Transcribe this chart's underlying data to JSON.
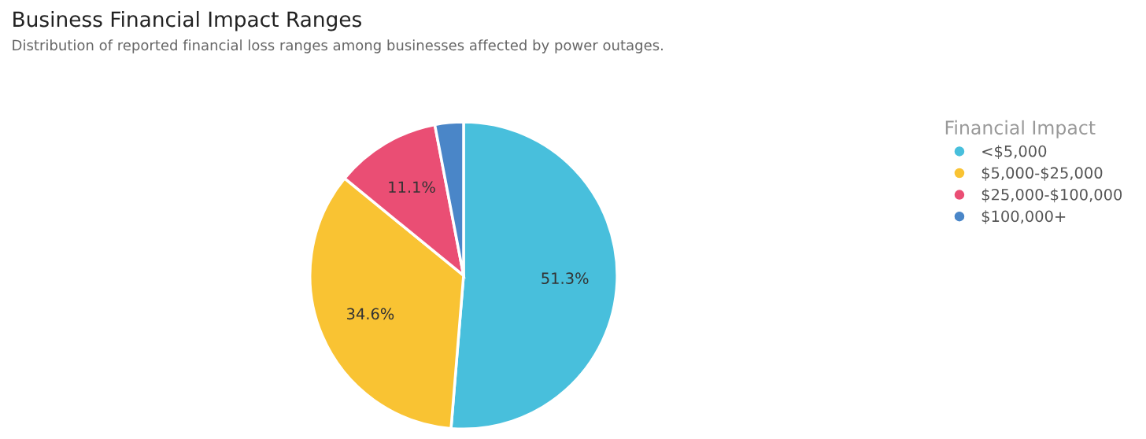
{
  "chart_data": {
    "type": "pie",
    "title": "Business Financial Impact Ranges",
    "subtitle": "Distribution of reported financial loss ranges among businesses affected by power outages.",
    "categories": [
      "<$5,000",
      "$5,000-$25,000",
      "$25,000-$100,000",
      "$100,000+"
    ],
    "values": [
      51.3,
      34.6,
      11.1,
      3.0
    ],
    "colors": [
      "#48bfdc",
      "#f9c333",
      "#ea4e74",
      "#4a86c8"
    ],
    "value_labels": [
      "51.3%",
      "34.6%",
      "11.1%",
      null
    ],
    "legend_title": "Financial Impact",
    "legend": "top right"
  }
}
